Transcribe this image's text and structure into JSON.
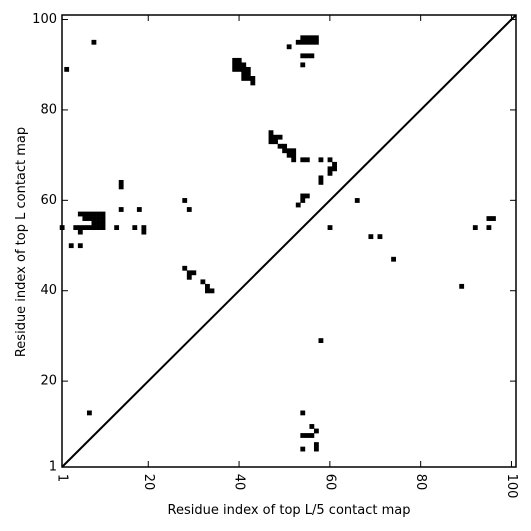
{
  "chart_data": {
    "type": "heatmap",
    "title": "",
    "xlabel": "Residue index of top L/5 contact map",
    "ylabel": "Residue index of top L contact map",
    "xlim": [
      1,
      101
    ],
    "ylim": [
      1,
      101
    ],
    "xticks": [
      1,
      20,
      40,
      60,
      80,
      100
    ],
    "yticks": [
      1,
      20,
      40,
      60,
      80,
      100
    ],
    "x_tick_labels": [
      "1",
      "20",
      "40",
      "60",
      "80",
      "100"
    ],
    "y_tick_labels": [
      "1",
      "20",
      "40",
      "60",
      "80",
      "100"
    ],
    "diagonal": [
      [
        1,
        1
      ],
      [
        101,
        101
      ]
    ],
    "colors": {
      "cell": "#000000",
      "background": "#ffffff",
      "axis": "#000000"
    },
    "upper_triangle_cells": [
      [
        2,
        89
      ],
      [
        8,
        95
      ],
      [
        39,
        91
      ],
      [
        40,
        91
      ],
      [
        39,
        90
      ],
      [
        40,
        90
      ],
      [
        41,
        90
      ],
      [
        39,
        89
      ],
      [
        40,
        89
      ],
      [
        41,
        89
      ],
      [
        42,
        89
      ],
      [
        41,
        88
      ],
      [
        42,
        88
      ],
      [
        41,
        87
      ],
      [
        42,
        87
      ],
      [
        43,
        87
      ],
      [
        43,
        86
      ],
      [
        51,
        94
      ],
      [
        53,
        95
      ],
      [
        54,
        95
      ],
      [
        55,
        95
      ],
      [
        56,
        95
      ],
      [
        57,
        95
      ],
      [
        54,
        96
      ],
      [
        55,
        96
      ],
      [
        56,
        96
      ],
      [
        57,
        96
      ],
      [
        54,
        92
      ],
      [
        55,
        92
      ],
      [
        56,
        92
      ],
      [
        54,
        90
      ],
      [
        47,
        75
      ],
      [
        47,
        74
      ],
      [
        48,
        74
      ],
      [
        49,
        74
      ],
      [
        47,
        73
      ],
      [
        48,
        73
      ],
      [
        49,
        72
      ],
      [
        50,
        72
      ],
      [
        50,
        71
      ],
      [
        51,
        71
      ],
      [
        52,
        71
      ],
      [
        51,
        70
      ],
      [
        52,
        70
      ],
      [
        52,
        69
      ],
      [
        54,
        69
      ],
      [
        55,
        69
      ],
      [
        58,
        69
      ],
      [
        60,
        69
      ],
      [
        61,
        68
      ],
      [
        60,
        67
      ],
      [
        61,
        67
      ],
      [
        60,
        66
      ],
      [
        58,
        65
      ],
      [
        58,
        64
      ],
      [
        54,
        61
      ],
      [
        55,
        61
      ],
      [
        54,
        60
      ],
      [
        53,
        59
      ],
      [
        66,
        60
      ],
      [
        60,
        54
      ],
      [
        69,
        52
      ],
      [
        71,
        52
      ],
      [
        74,
        47
      ],
      [
        89,
        41
      ],
      [
        92,
        54
      ],
      [
        95,
        54
      ],
      [
        95,
        56
      ],
      [
        96,
        56
      ],
      [
        28,
        45
      ],
      [
        29,
        44
      ],
      [
        30,
        44
      ],
      [
        29,
        43
      ],
      [
        32,
        42
      ],
      [
        33,
        41
      ],
      [
        33,
        40
      ],
      [
        34,
        40
      ],
      [
        28,
        60
      ],
      [
        29,
        58
      ],
      [
        58,
        29
      ]
    ],
    "lower_triangle_cells": [
      [
        1,
        54
      ],
      [
        3,
        50
      ],
      [
        5,
        50
      ],
      [
        14,
        64
      ],
      [
        14,
        63
      ],
      [
        14,
        58
      ],
      [
        18,
        58
      ],
      [
        13,
        54
      ],
      [
        17,
        54
      ],
      [
        19,
        54
      ],
      [
        19,
        53
      ],
      [
        5,
        57
      ],
      [
        6,
        57
      ],
      [
        7,
        57
      ],
      [
        8,
        57
      ],
      [
        9,
        57
      ],
      [
        10,
        57
      ],
      [
        6,
        56
      ],
      [
        7,
        56
      ],
      [
        8,
        56
      ],
      [
        9,
        56
      ],
      [
        10,
        56
      ],
      [
        8,
        55
      ],
      [
        9,
        55
      ],
      [
        10,
        55
      ],
      [
        4,
        54
      ],
      [
        5,
        54
      ],
      [
        6,
        54
      ],
      [
        7,
        54
      ],
      [
        8,
        54
      ],
      [
        9,
        54
      ],
      [
        10,
        54
      ],
      [
        5,
        53
      ],
      [
        7,
        13
      ],
      [
        54,
        13
      ],
      [
        56,
        10
      ],
      [
        57,
        9
      ],
      [
        54,
        8
      ],
      [
        55,
        8
      ],
      [
        56,
        8
      ],
      [
        57,
        6
      ],
      [
        54,
        5
      ],
      [
        57,
        5
      ]
    ]
  }
}
